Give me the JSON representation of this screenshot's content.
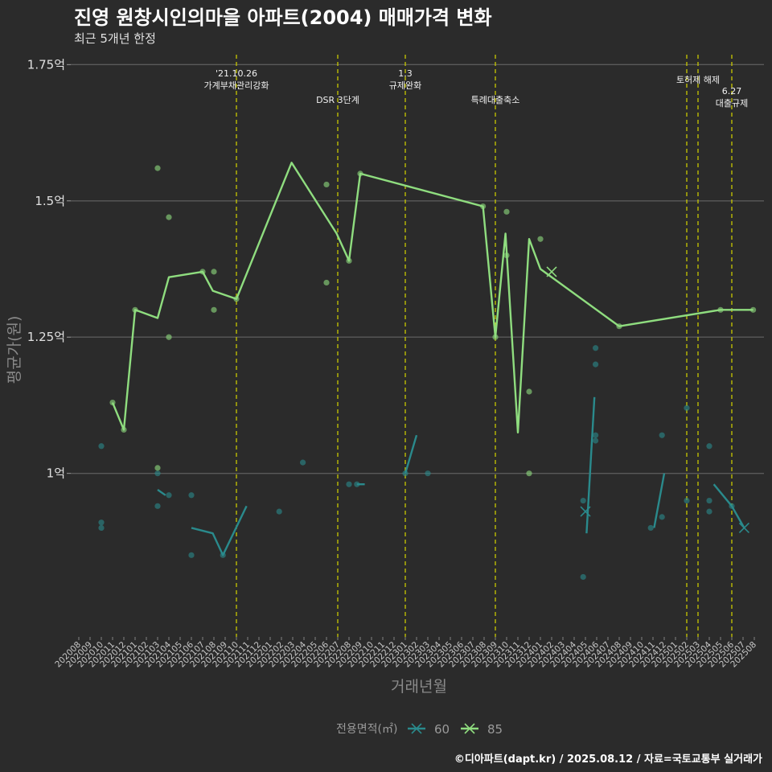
{
  "chart_data": {
    "type": "line",
    "title": "진영 원창시인의마을 아파트(2004) 매매가격 변화",
    "subtitle": "최근 5개년 한정",
    "xlabel": "거래년월",
    "ylabel": "평균가(원)",
    "caption": "©디아파트(dapt.kr) / 2025.08.12 / 자료=국토교통부 실거래가",
    "ylim": [
      0.7,
      1.78
    ],
    "yticks": [
      {
        "value": 1.0,
        "label": "1억"
      },
      {
        "value": 1.25,
        "label": "1.25억"
      },
      {
        "value": 1.5,
        "label": "1.5억"
      },
      {
        "value": 1.75,
        "label": "1.75억"
      }
    ],
    "x_categories": [
      "202008",
      "202009",
      "202010",
      "202011",
      "202012",
      "202101",
      "202102",
      "202103",
      "202104",
      "202105",
      "202106",
      "202107",
      "202108",
      "202109",
      "202110",
      "202111",
      "202112",
      "202201",
      "202202",
      "202203",
      "202204",
      "202205",
      "202206",
      "202207",
      "202208",
      "202209",
      "202210",
      "202211",
      "202212",
      "202301",
      "202302",
      "202303",
      "202304",
      "202305",
      "202306",
      "202307",
      "202308",
      "202309",
      "202310",
      "202311",
      "202312",
      "202401",
      "202402",
      "202403",
      "202404",
      "202405",
      "202406",
      "202407",
      "202408",
      "202409",
      "202410",
      "202411",
      "202412",
      "202501",
      "202502",
      "202503",
      "202504",
      "202505",
      "202506",
      "202507",
      "202508"
    ],
    "events": [
      {
        "x": 14,
        "lines": [
          "'21.10.26",
          "가계부채관리강화"
        ],
        "pos": "high"
      },
      {
        "x": 23,
        "lines": [
          "DSR 3단계"
        ],
        "pos": "low"
      },
      {
        "x": 29,
        "lines": [
          "1.3",
          "규제완화"
        ],
        "pos": "high"
      },
      {
        "x": 37,
        "lines": [
          "특례대출축소"
        ],
        "pos": "low"
      },
      {
        "x": 54,
        "lines": [],
        "pos": "high"
      },
      {
        "x": 55,
        "lines": [
          "토허제 해제"
        ],
        "pos": "mid"
      },
      {
        "x": 58,
        "lines": [
          "6.27",
          "대출규제"
        ],
        "pos": "low2"
      }
    ],
    "legend": {
      "title": "전용면적(㎡)",
      "position": "bottom"
    },
    "series": [
      {
        "name": "60",
        "color": "#2a8a8c",
        "line_segments": [
          [
            [
              7.0,
              0.97
            ],
            [
              7.7,
              0.96
            ]
          ],
          [
            [
              10.0,
              0.9
            ],
            [
              11.9,
              0.89
            ],
            [
              12.8,
              0.85
            ],
            [
              14.9,
              0.94
            ]
          ],
          [
            [
              24.7,
              0.98
            ],
            [
              25.4,
              0.98
            ]
          ],
          [
            [
              29.0,
              1.0
            ],
            [
              30.0,
              1.07
            ]
          ],
          [
            [
              45.1,
              0.89
            ],
            [
              45.8,
              1.14
            ]
          ],
          [
            [
              51.1,
              0.9
            ],
            [
              52.0,
              1.0
            ]
          ],
          [
            [
              56.4,
              0.98
            ],
            [
              58.0,
              0.94
            ],
            [
              59.1,
              0.9
            ]
          ]
        ],
        "points": [
          [
            2.0,
            0.91
          ],
          [
            2.0,
            0.9
          ],
          [
            2.0,
            1.05
          ],
          [
            7.0,
            1.0
          ],
          [
            7.0,
            0.94
          ],
          [
            8.0,
            0.96
          ],
          [
            10.0,
            0.96
          ],
          [
            10.0,
            0.85
          ],
          [
            12.8,
            0.85
          ],
          [
            17.8,
            0.93
          ],
          [
            19.9,
            1.02
          ],
          [
            24.0,
            0.98
          ],
          [
            24.7,
            0.98
          ],
          [
            29.0,
            1.0
          ],
          [
            31.0,
            1.0
          ],
          [
            44.8,
            0.95
          ],
          [
            44.8,
            0.81
          ],
          [
            45.9,
            1.23
          ],
          [
            45.9,
            1.2
          ],
          [
            45.9,
            1.07
          ],
          [
            45.9,
            1.06
          ],
          [
            50.8,
            0.9
          ],
          [
            51.8,
            1.07
          ],
          [
            51.8,
            0.92
          ],
          [
            54.0,
            1.12
          ],
          [
            54.0,
            0.95
          ],
          [
            56.0,
            1.05
          ],
          [
            56.0,
            0.95
          ],
          [
            56.0,
            0.93
          ],
          [
            58.0,
            0.94
          ]
        ],
        "x_markers": [
          [
            45.0,
            0.93
          ],
          [
            59.1,
            0.9
          ]
        ]
      },
      {
        "name": "85",
        "color": "#8fdd7f",
        "line": [
          [
            3.0,
            1.13
          ],
          [
            4.0,
            1.08
          ],
          [
            5.0,
            1.3
          ],
          [
            7.0,
            1.285
          ],
          [
            8.0,
            1.36
          ],
          [
            11.0,
            1.37
          ],
          [
            11.9,
            1.335
          ],
          [
            14.0,
            1.32
          ],
          [
            18.9,
            1.57
          ],
          [
            22.9,
            1.44
          ],
          [
            24.0,
            1.39
          ],
          [
            25.0,
            1.55
          ],
          [
            35.9,
            1.49
          ],
          [
            37.0,
            1.25
          ],
          [
            37.9,
            1.44
          ],
          [
            39.0,
            1.075
          ],
          [
            40.0,
            1.43
          ],
          [
            41.0,
            1.375
          ],
          [
            48.0,
            1.27
          ],
          [
            57.0,
            1.3
          ],
          [
            59.9,
            1.3
          ]
        ],
        "points": [
          [
            3.0,
            1.13
          ],
          [
            4.0,
            1.08
          ],
          [
            5.0,
            1.3
          ],
          [
            7.0,
            1.56
          ],
          [
            7.0,
            1.01
          ],
          [
            8.0,
            1.47
          ],
          [
            8.0,
            1.25
          ],
          [
            11.0,
            1.37
          ],
          [
            12.0,
            1.37
          ],
          [
            12.0,
            1.3
          ],
          [
            14.0,
            1.32
          ],
          [
            22.0,
            1.53
          ],
          [
            22.0,
            1.35
          ],
          [
            24.0,
            1.39
          ],
          [
            25.0,
            1.55
          ],
          [
            35.9,
            1.49
          ],
          [
            37.0,
            1.25
          ],
          [
            38.0,
            1.48
          ],
          [
            38.0,
            1.4
          ],
          [
            40.0,
            1.15
          ],
          [
            40.0,
            1.0
          ],
          [
            41.0,
            1.43
          ],
          [
            48.0,
            1.27
          ],
          [
            57.0,
            1.3
          ],
          [
            59.9,
            1.3
          ]
        ],
        "x_markers": [
          [
            42.0,
            1.37
          ]
        ]
      }
    ]
  }
}
